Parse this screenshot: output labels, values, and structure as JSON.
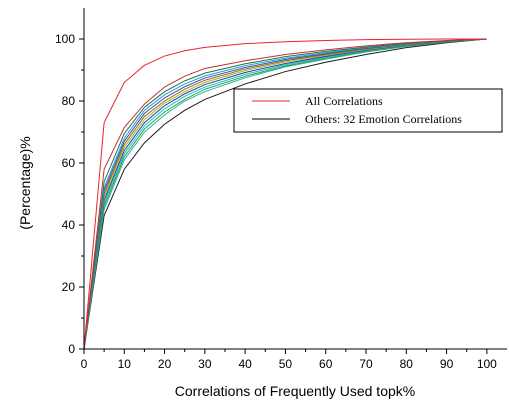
{
  "chart_data": {
    "type": "line",
    "xlabel": "Correlations of Frequently Used topk%",
    "ylabel": "(Percentage)%",
    "xlim": [
      0,
      105
    ],
    "ylim": [
      0,
      110
    ],
    "x_ticks": [
      0,
      10,
      20,
      30,
      40,
      50,
      60,
      70,
      80,
      90,
      100
    ],
    "y_ticks": [
      0,
      20,
      40,
      60,
      80,
      100
    ],
    "x": [
      0,
      5,
      10,
      15,
      20,
      25,
      30,
      40,
      50,
      60,
      70,
      80,
      90,
      100
    ],
    "grid": false,
    "legend_position": "center-right",
    "legend": {
      "entries": [
        "All Correlations",
        "Others: 32 Emotion Correlations"
      ],
      "colors": [
        "#e8262b",
        "#000000"
      ]
    },
    "series_colors": [
      "#e8262b",
      "#1a1a1a",
      "#2ab3b3",
      "#3c9c3c",
      "#00c8c8",
      "#1f3fa8",
      "#b0b020",
      "#8a6a2a",
      "#4a4a9a",
      "#20a0e0",
      "#207050",
      "#c03030"
    ],
    "series": [
      {
        "name": "All Correlations",
        "values": [
          0,
          73,
          86,
          91.5,
          94.5,
          96.2,
          97.3,
          98.5,
          99.1,
          99.5,
          99.8,
          99.9,
          100,
          100
        ]
      },
      {
        "values": [
          0,
          43,
          58,
          66.5,
          72.5,
          77,
          80.5,
          85.5,
          89.5,
          92.5,
          95,
          97.2,
          98.8,
          100
        ]
      },
      {
        "values": [
          0,
          45,
          61,
          70,
          75.5,
          80,
          83,
          87.5,
          91,
          93.5,
          95.8,
          97.6,
          99,
          100
        ]
      },
      {
        "values": [
          0,
          46,
          62,
          71,
          76.5,
          80.5,
          83.8,
          88,
          91.3,
          93.8,
          96,
          97.7,
          99,
          100
        ]
      },
      {
        "values": [
          0,
          47,
          63,
          72,
          77.5,
          81.5,
          84.5,
          88.6,
          91.7,
          94.1,
          96.2,
          97.9,
          99.1,
          100
        ]
      },
      {
        "values": [
          0,
          48,
          64,
          73,
          78.5,
          82.3,
          85.3,
          89.2,
          92.1,
          94.4,
          96.4,
          98,
          99.1,
          100
        ]
      },
      {
        "values": [
          0,
          49,
          65,
          74,
          79.3,
          83,
          86,
          89.8,
          92.6,
          94.7,
          96.6,
          98.1,
          99.2,
          100
        ]
      },
      {
        "values": [
          0,
          50,
          66,
          75,
          80,
          83.8,
          86.7,
          90.3,
          93,
          95,
          96.8,
          98.2,
          99.2,
          100
        ]
      },
      {
        "values": [
          0,
          51,
          67,
          76,
          81,
          84.6,
          87.4,
          90.8,
          93.4,
          95.3,
          97,
          98.3,
          99.3,
          100
        ]
      },
      {
        "values": [
          0,
          52,
          68,
          77,
          82,
          85.5,
          88.1,
          91.4,
          93.8,
          95.6,
          97.2,
          98.4,
          99.3,
          100
        ]
      },
      {
        "values": [
          0,
          54,
          69.5,
          78,
          83,
          86.5,
          89,
          92,
          94.3,
          96,
          97.4,
          98.6,
          99.4,
          100
        ]
      },
      {
        "values": [
          0,
          58,
          71.5,
          79,
          84.5,
          88,
          90.5,
          93,
          95,
          96.5,
          97.8,
          98.8,
          99.5,
          100
        ]
      }
    ]
  }
}
